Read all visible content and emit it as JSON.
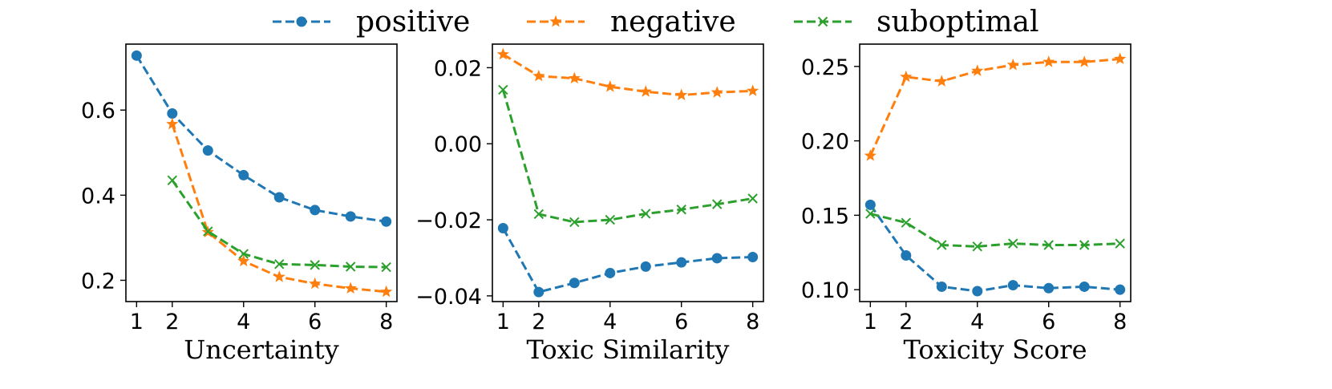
{
  "legend": {
    "placement": "top-center",
    "entries": [
      {
        "label": "positive",
        "color": "#1f77b4",
        "marker": "circle"
      },
      {
        "label": "negative",
        "color": "#ff7f0e",
        "marker": "star"
      },
      {
        "label": "suboptimal",
        "color": "#2ca02c",
        "marker": "x"
      }
    ]
  },
  "chart_data": [
    {
      "type": "line",
      "xlabel": "Uncertainty",
      "ylabel": "",
      "grid": false,
      "xlim": [
        0.7,
        8.3
      ],
      "ylim": [
        0.15,
        0.755
      ],
      "xticks": [
        1,
        2,
        4,
        6,
        8
      ],
      "yticks": [
        0.2,
        0.4,
        0.6
      ],
      "ytick_labels": [
        "0.2",
        "0.4",
        "0.6"
      ],
      "series": [
        {
          "name": "positive",
          "x": [
            1,
            2,
            3,
            4,
            5,
            6,
            7,
            8
          ],
          "values": [
            0.728,
            0.592,
            0.505,
            0.447,
            0.395,
            0.365,
            0.35,
            0.338
          ]
        },
        {
          "name": "negative",
          "x": [
            2,
            3,
            4,
            5,
            6,
            7,
            8
          ],
          "values": [
            0.567,
            0.313,
            0.245,
            0.208,
            0.192,
            0.181,
            0.173
          ]
        },
        {
          "name": "suboptimal",
          "x": [
            2,
            3,
            4,
            5,
            6,
            7,
            8
          ],
          "values": [
            0.435,
            0.315,
            0.262,
            0.238,
            0.236,
            0.232,
            0.231
          ]
        }
      ]
    },
    {
      "type": "line",
      "xlabel": "Toxic Similarity",
      "ylabel": "",
      "grid": false,
      "xlim": [
        0.7,
        8.3
      ],
      "ylim": [
        -0.0415,
        0.0262
      ],
      "xticks": [
        1,
        2,
        4,
        6,
        8
      ],
      "yticks": [
        -0.04,
        -0.02,
        0.0,
        0.02
      ],
      "ytick_labels": [
        "−0.04",
        "−0.02",
        "0.00",
        "0.02"
      ],
      "series": [
        {
          "name": "positive",
          "x": [
            1,
            2,
            3,
            4,
            5,
            6,
            7,
            8
          ],
          "values": [
            -0.0222,
            -0.039,
            -0.0366,
            -0.034,
            -0.0323,
            -0.0312,
            -0.0301,
            -0.0298
          ]
        },
        {
          "name": "negative",
          "x": [
            1,
            2,
            3,
            4,
            5,
            6,
            7,
            8
          ],
          "values": [
            0.0235,
            0.0178,
            0.0172,
            0.015,
            0.0137,
            0.0128,
            0.0135,
            0.0139
          ]
        },
        {
          "name": "suboptimal",
          "x": [
            1,
            2,
            3,
            4,
            5,
            6,
            7,
            8
          ],
          "values": [
            0.0142,
            -0.0185,
            -0.0206,
            -0.02,
            -0.0184,
            -0.0173,
            -0.0159,
            -0.0144
          ]
        }
      ]
    },
    {
      "type": "line",
      "xlabel": "Toxicity Score",
      "ylabel": "",
      "grid": false,
      "xlim": [
        0.7,
        8.3
      ],
      "ylim": [
        0.092,
        0.265
      ],
      "xticks": [
        1,
        2,
        4,
        6,
        8
      ],
      "yticks": [
        0.1,
        0.15,
        0.2,
        0.25
      ],
      "ytick_labels": [
        "0.10",
        "0.15",
        "0.20",
        "0.25"
      ],
      "series": [
        {
          "name": "positive",
          "x": [
            1,
            2,
            3,
            4,
            5,
            6,
            7,
            8
          ],
          "values": [
            0.157,
            0.123,
            0.102,
            0.099,
            0.103,
            0.101,
            0.102,
            0.1
          ]
        },
        {
          "name": "negative",
          "x": [
            1,
            2,
            3,
            4,
            5,
            6,
            7,
            8
          ],
          "values": [
            0.19,
            0.243,
            0.24,
            0.247,
            0.251,
            0.253,
            0.253,
            0.255
          ]
        },
        {
          "name": "suboptimal",
          "x": [
            1,
            2,
            3,
            4,
            5,
            6,
            7,
            8
          ],
          "values": [
            0.151,
            0.145,
            0.13,
            0.129,
            0.131,
            0.13,
            0.13,
            0.131
          ]
        }
      ]
    }
  ]
}
